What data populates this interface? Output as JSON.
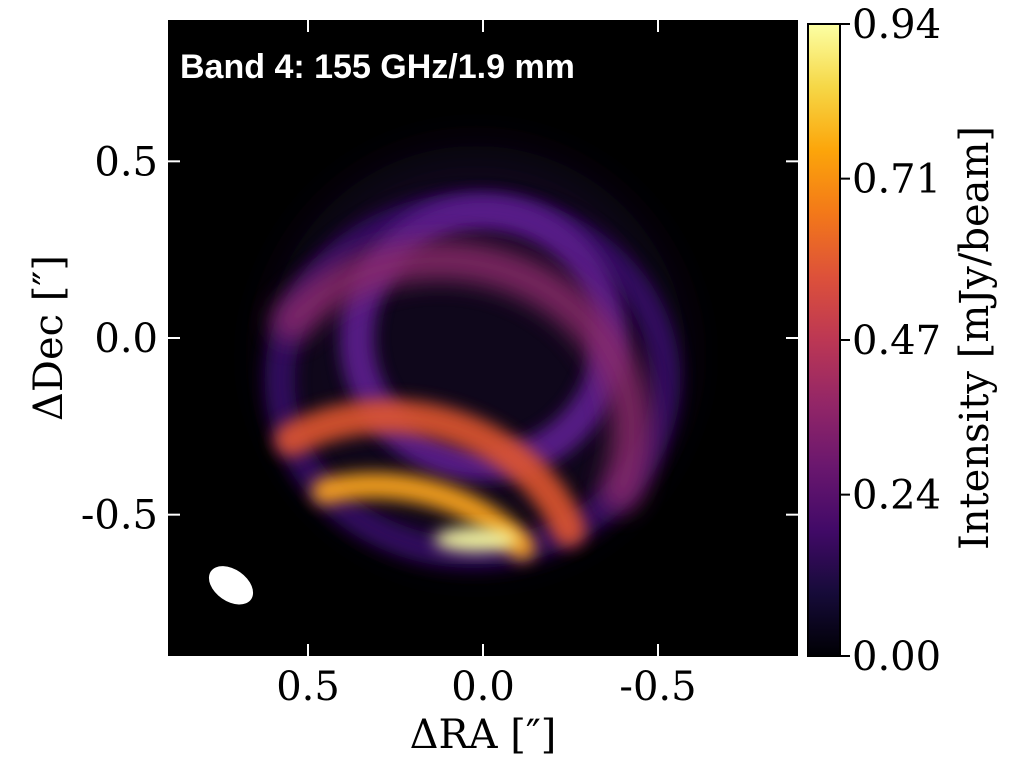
{
  "chart_data": {
    "type": "heatmap",
    "title": "Band 4: 155 GHz/1.9 mm",
    "xlabel": "ΔRA [″]",
    "ylabel": "ΔDec [″]",
    "xlim": [
      0.9,
      -0.9
    ],
    "ylim": [
      -0.9,
      0.9
    ],
    "x_ticks": [
      0.5,
      0.0,
      -0.5
    ],
    "x_tick_labels": [
      "0.5",
      "0.0",
      "-0.5"
    ],
    "y_ticks": [
      0.5,
      0.0,
      -0.5
    ],
    "y_tick_labels": [
      "0.5",
      "0.0",
      "-0.5"
    ],
    "colorbar": {
      "label": "Intensity [mJy/beam]",
      "colormap": "inferno",
      "range": [
        0.0,
        0.94
      ],
      "ticks": [
        0.0,
        0.24,
        0.47,
        0.71,
        0.94
      ],
      "tick_labels": [
        "0.00",
        "0.24",
        "0.47",
        "0.71",
        "0.94"
      ]
    },
    "features": {
      "inner_ring": {
        "center_ra": 0.0,
        "center_dec": 0.0,
        "radius_arcsec": 0.36,
        "peak_intensity": 0.2
      },
      "outer_crescent": {
        "center_ra": 0.03,
        "center_dec": -0.12,
        "radius_arcsec": 0.58,
        "peak_position_ra": 0.02,
        "peak_position_dec": -0.57,
        "peak_intensity": 0.94
      }
    },
    "beam": {
      "center_ra": 0.72,
      "center_dec": -0.7,
      "major_arcsec": 0.1,
      "minor_arcsec": 0.065,
      "color": "#ffffff"
    },
    "colors": {
      "background": "#000000",
      "label_text": "#ffffff",
      "tick_color": "#ffffff"
    }
  }
}
